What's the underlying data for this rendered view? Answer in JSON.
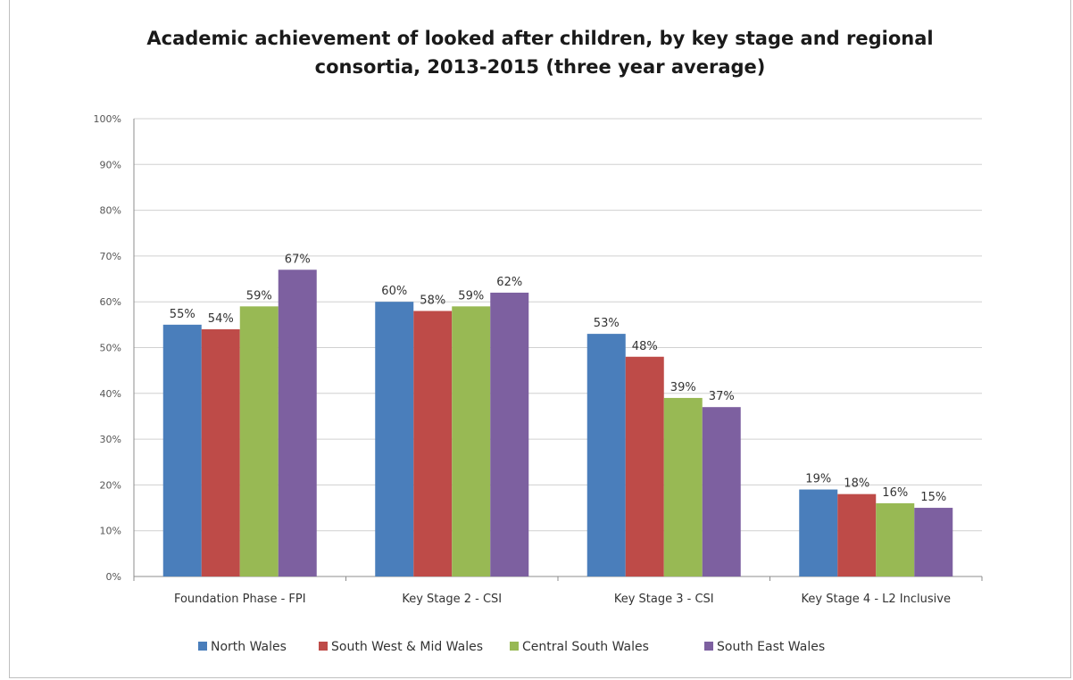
{
  "chart_data": {
    "type": "bar",
    "title_lines": [
      "Academic achievement of looked after children, by key stage and regional",
      "consortia, 2013-2015 (three year average)"
    ],
    "categories": [
      "Foundation Phase - FPI",
      "Key Stage 2 - CSI",
      "Key Stage 3 - CSI",
      "Key Stage 4 - L2 Inclusive"
    ],
    "series": [
      {
        "name": "North Wales",
        "color": "#4a7ebb",
        "values": [
          55,
          60,
          53,
          19
        ],
        "labels": [
          "55%",
          "60%",
          "53%",
          "19%"
        ]
      },
      {
        "name": "South West & Mid Wales",
        "color": "#be4b48",
        "values": [
          54,
          58,
          48,
          18
        ],
        "labels": [
          "54%",
          "58%",
          "48%",
          "18%"
        ]
      },
      {
        "name": "Central South Wales",
        "color": "#98b954",
        "values": [
          59,
          59,
          39,
          16
        ],
        "labels": [
          "59%",
          "59%",
          "39%",
          "16%"
        ]
      },
      {
        "name": "South East Wales",
        "color": "#7d60a0",
        "values": [
          67,
          62,
          37,
          15
        ],
        "labels": [
          "67%",
          "62%",
          "37%",
          "15%"
        ]
      }
    ],
    "ylim": [
      0,
      100
    ],
    "yticks": [
      0,
      10,
      20,
      30,
      40,
      50,
      60,
      70,
      80,
      90,
      100
    ],
    "ytick_labels": [
      "0%",
      "10%",
      "20%",
      "30%",
      "40%",
      "50%",
      "60%",
      "70%",
      "80%",
      "90%",
      "100%"
    ],
    "grid": true,
    "legend_position": "bottom"
  }
}
